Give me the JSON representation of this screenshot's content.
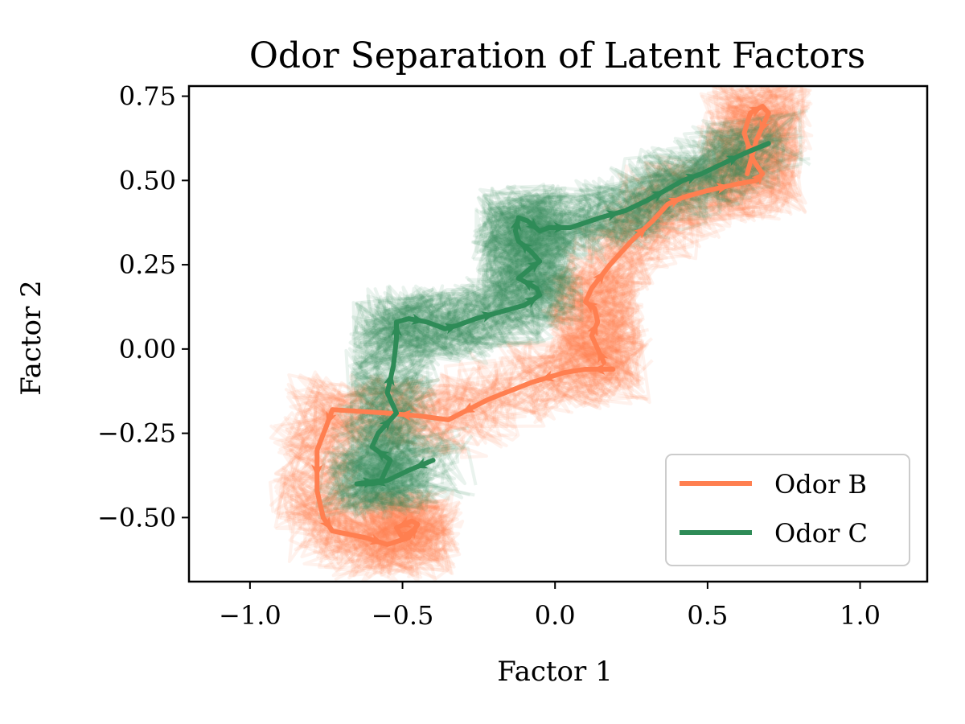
{
  "chart_data": {
    "type": "line",
    "title": "Odor Separation of Latent Factors",
    "xlabel": "Factor 1",
    "ylabel": "Factor 2",
    "xlim": [
      -1.2,
      1.22
    ],
    "ylim": [
      -0.69,
      0.78
    ],
    "xticks": [
      -1.0,
      -0.5,
      0.0,
      0.5,
      1.0
    ],
    "xtick_labels": [
      "−1.0",
      "−0.5",
      "0.0",
      "0.5",
      "1.0"
    ],
    "yticks": [
      -0.5,
      -0.25,
      0.0,
      0.25,
      0.5,
      0.75
    ],
    "ytick_labels": [
      "−0.50",
      "−0.25",
      "0.00",
      "0.25",
      "0.50",
      "0.75"
    ],
    "grid": false,
    "legend_position": "lower-right",
    "series": [
      {
        "name": "Odor B",
        "color": "#ff7f50",
        "mean_trajectory": {
          "x": [
            0.19,
            0.1,
            0.03,
            -0.08,
            -0.22,
            -0.35,
            -0.43,
            -0.55,
            -0.73,
            -0.75,
            -0.78,
            -0.78,
            -0.76,
            -0.73,
            -0.62,
            -0.55,
            -0.48,
            -0.45,
            -0.47,
            -0.52,
            -0.5,
            -0.46
          ],
          "y": [
            -0.06,
            -0.06,
            -0.07,
            -0.1,
            -0.15,
            -0.21,
            -0.2,
            -0.19,
            -0.18,
            -0.23,
            -0.3,
            -0.42,
            -0.5,
            -0.54,
            -0.56,
            -0.58,
            -0.56,
            -0.52,
            -0.51,
            -0.53,
            -0.56,
            -0.54
          ]
        },
        "mean_trajectory_2": {
          "x": [
            0.16,
            0.14,
            0.12,
            0.14,
            0.13,
            0.1,
            0.12,
            0.18,
            0.25,
            0.32,
            0.37,
            0.42,
            0.5,
            0.6,
            0.66,
            0.68,
            0.65,
            0.62,
            0.64,
            0.68,
            0.7,
            0.66,
            0.63
          ],
          "y": [
            -0.04,
            0.0,
            0.04,
            0.08,
            0.12,
            0.14,
            0.18,
            0.25,
            0.32,
            0.38,
            0.43,
            0.45,
            0.47,
            0.49,
            0.5,
            0.52,
            0.56,
            0.64,
            0.7,
            0.72,
            0.7,
            0.62,
            0.52
          ]
        }
      },
      {
        "name": "Odor C",
        "color": "#2e8b57",
        "mean_trajectory": {
          "x": [
            -0.4,
            -0.48,
            -0.55,
            -0.6,
            -0.65,
            -0.57,
            -0.54,
            -0.6,
            -0.58,
            -0.52,
            -0.55,
            -0.53,
            -0.52,
            -0.52,
            -0.48,
            -0.42,
            -0.36,
            -0.32,
            -0.26,
            -0.18,
            -0.1,
            -0.05,
            -0.06,
            -0.12,
            -0.08,
            -0.05,
            -0.08,
            -0.12,
            -0.13,
            -0.12,
            -0.09,
            -0.05,
            -0.02,
            0.05,
            0.15,
            0.23,
            0.3,
            0.38,
            0.42,
            0.48,
            0.55,
            0.62,
            0.7
          ],
          "y": [
            -0.33,
            -0.36,
            -0.39,
            -0.4,
            -0.4,
            -0.39,
            -0.33,
            -0.29,
            -0.25,
            -0.19,
            -0.13,
            -0.05,
            0.03,
            0.08,
            0.09,
            0.08,
            0.06,
            0.07,
            0.09,
            0.11,
            0.13,
            0.16,
            0.18,
            0.21,
            0.24,
            0.26,
            0.29,
            0.32,
            0.35,
            0.39,
            0.38,
            0.35,
            0.36,
            0.36,
            0.39,
            0.41,
            0.44,
            0.48,
            0.5,
            0.52,
            0.55,
            0.58,
            0.61
          ]
        }
      }
    ]
  }
}
